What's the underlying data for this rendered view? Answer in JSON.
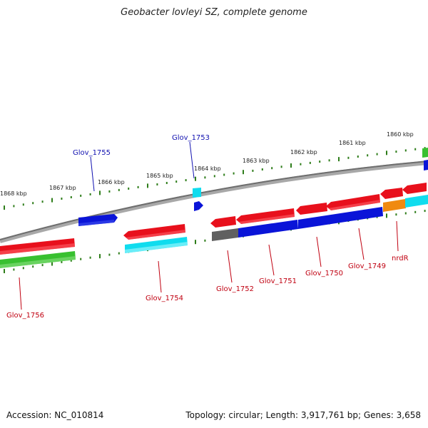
{
  "title": "Geobacter lovleyi SZ, complete genome",
  "footer": {
    "accession": "Accession: NC_010814",
    "summary": "Topology: circular; Length: 3,917,761 bp; Genes: 3,658"
  },
  "colors": {
    "backbone": "#808080",
    "tick": "#2e7d1a",
    "red": "#e8101c",
    "blue": "#0a14d8",
    "cyan": "#10dcee",
    "green": "#38c030",
    "orange": "#f08a10",
    "gray": "#606060",
    "label_red": "#c00010",
    "label_blue": "#1010b0"
  },
  "kbp_labels": [
    {
      "text": "1868 kbp"
    },
    {
      "text": "1867 kbp"
    },
    {
      "text": "1866 kbp"
    },
    {
      "text": "1865 kbp"
    },
    {
      "text": "1864 kbp"
    },
    {
      "text": "1863 kbp"
    },
    {
      "text": "1862 kbp"
    },
    {
      "text": "1861 kbp"
    },
    {
      "text": "1860 kbp"
    }
  ],
  "gene_labels": {
    "glov_1755": "Glov_1755",
    "glov_1753": "Glov_1753",
    "glov_1756": "Glov_1756",
    "glov_1754": "Glov_1754",
    "glov_1752": "Glov_1752",
    "glov_1751": "Glov_1751",
    "glov_1750": "Glov_1750",
    "glov_1749": "Glov_1749",
    "nrdR": "nrdR"
  }
}
